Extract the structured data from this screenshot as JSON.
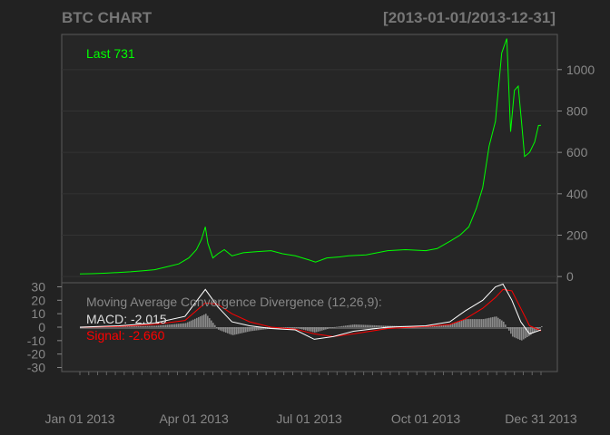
{
  "header": {
    "title": "BTC CHART",
    "date_range": "[2013-01-01/2013-12-31]"
  },
  "colors": {
    "background": "#222222",
    "panel": "#262626",
    "price_line": "#00ff00",
    "macd_line": "#ffffff",
    "signal_line": "#ff0000",
    "histogram": "#8a8a8a",
    "text": "#888888"
  },
  "chart_data": [
    {
      "type": "line",
      "title": "BTC CHART",
      "last_label": "Last 731",
      "y_ticks": [
        0,
        200,
        400,
        600,
        800,
        1000
      ],
      "ylim": [
        -30,
        1170
      ],
      "grid": true,
      "x": [
        "2013-01-01",
        "2013-01-10",
        "2013-01-20",
        "2013-02-01",
        "2013-02-10",
        "2013-02-20",
        "2013-03-01",
        "2013-03-10",
        "2013-03-20",
        "2013-03-28",
        "2013-04-03",
        "2013-04-07",
        "2013-04-10",
        "2013-04-12",
        "2013-04-16",
        "2013-04-20",
        "2013-04-25",
        "2013-05-01",
        "2013-05-10",
        "2013-05-20",
        "2013-06-01",
        "2013-06-10",
        "2013-06-20",
        "2013-07-01",
        "2013-07-06",
        "2013-07-15",
        "2013-07-25",
        "2013-08-01",
        "2013-08-15",
        "2013-09-01",
        "2013-09-15",
        "2013-10-01",
        "2013-10-10",
        "2013-10-20",
        "2013-10-28",
        "2013-11-04",
        "2013-11-10",
        "2013-11-15",
        "2013-11-20",
        "2013-11-25",
        "2013-11-30",
        "2013-12-04",
        "2013-12-07",
        "2013-12-10",
        "2013-12-13",
        "2013-12-16",
        "2013-12-18",
        "2013-12-22",
        "2013-12-26",
        "2013-12-29",
        "2013-12-31"
      ],
      "series": [
        {
          "values": [
            13,
            14,
            16,
            20,
            23,
            28,
            33,
            46,
            61,
            90,
            130,
            180,
            240,
            160,
            90,
            110,
            130,
            100,
            115,
            120,
            125,
            110,
            100,
            80,
            70,
            90,
            95,
            100,
            105,
            125,
            130,
            125,
            135,
            170,
            200,
            240,
            330,
            430,
            630,
            750,
            1080,
            1150,
            700,
            900,
            920,
            720,
            580,
            600,
            650,
            730,
            731
          ]
        }
      ]
    },
    {
      "type": "line",
      "title": "Moving Average Convergence Divergence (12,26,9):",
      "macd_label": "MACD: -2.015",
      "signal_label": "Signal: -2.660",
      "y_ticks": [
        30,
        20,
        10,
        0,
        -10,
        -20,
        -30
      ],
      "ylim": [
        -33,
        33
      ],
      "x_ticks": [
        "Jan 01 2013",
        "Apr 01 2013",
        "Jul 01 2013",
        "Oct 01 2013",
        "Dec 31 2013"
      ],
      "x": [
        "2013-01-01",
        "2013-02-01",
        "2013-03-01",
        "2013-03-25",
        "2013-04-10",
        "2013-04-20",
        "2013-05-01",
        "2013-05-15",
        "2013-06-01",
        "2013-06-20",
        "2013-07-05",
        "2013-07-20",
        "2013-08-05",
        "2013-09-01",
        "2013-10-01",
        "2013-10-20",
        "2013-11-01",
        "2013-11-15",
        "2013-11-25",
        "2013-12-01",
        "2013-12-08",
        "2013-12-15",
        "2013-12-22",
        "2013-12-31"
      ],
      "series": [
        {
          "name": "MACD",
          "values": [
            0,
            1,
            3,
            8,
            28,
            15,
            4,
            1,
            -1,
            -2,
            -9,
            -7,
            -3,
            0,
            1,
            4,
            12,
            20,
            30,
            32,
            20,
            4,
            -5,
            -2
          ]
        },
        {
          "name": "Signal",
          "values": [
            0,
            0.5,
            2,
            5,
            18,
            17,
            10,
            4,
            0,
            -1.5,
            -5,
            -7,
            -5,
            -1,
            0.5,
            2,
            6,
            14,
            22,
            28,
            27,
            14,
            1,
            -2.7
          ]
        }
      ]
    }
  ]
}
